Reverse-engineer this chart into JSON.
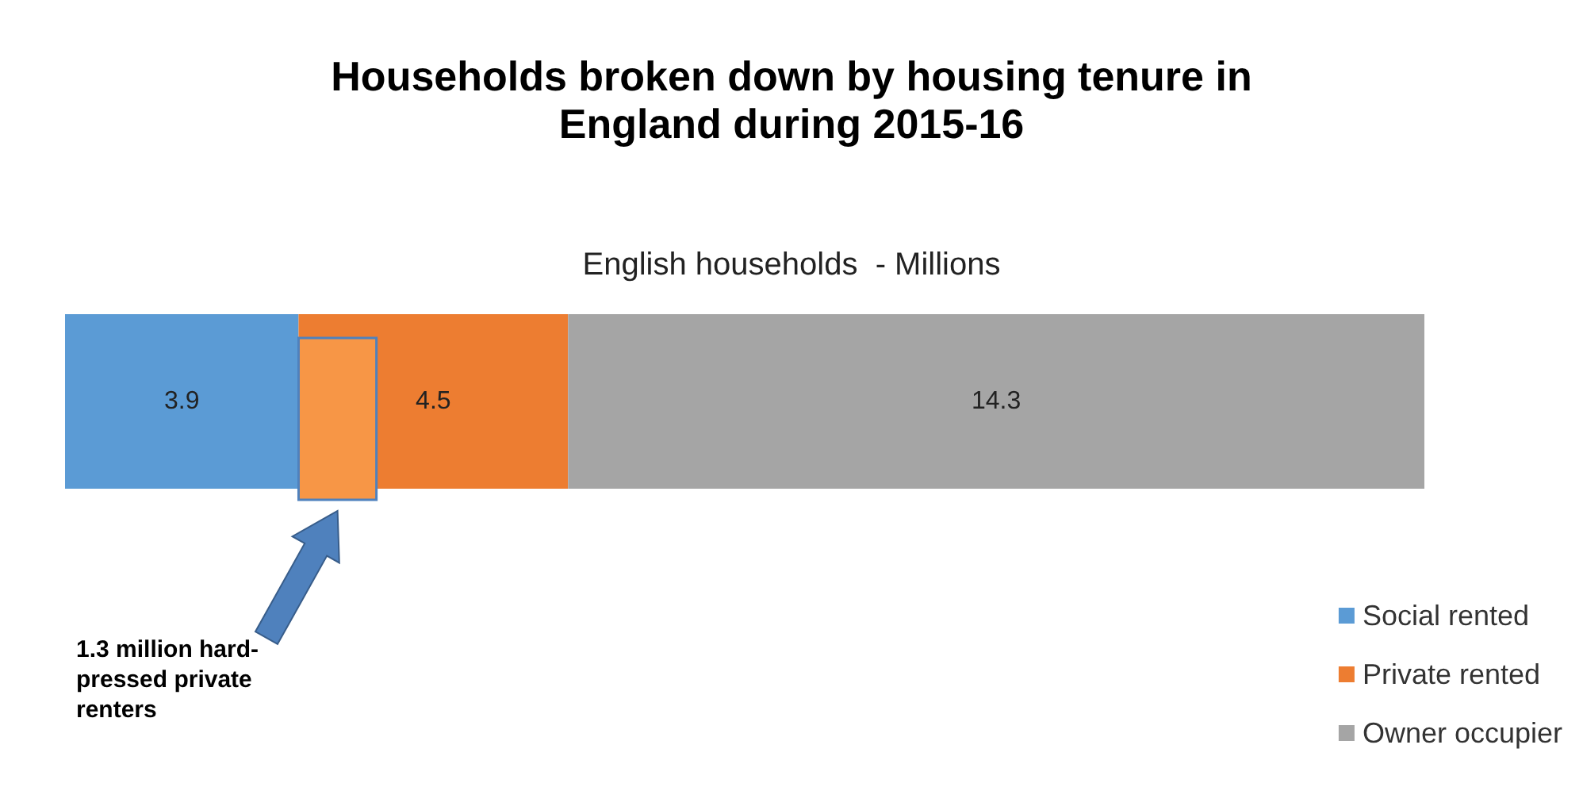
{
  "chart_data": {
    "type": "bar",
    "orientation": "horizontal",
    "stacked": true,
    "title": "Households broken down by housing tenure in\nEngland during 2015-16",
    "subtitle": "English households  - Millions",
    "categories": [
      null
    ],
    "series": [
      {
        "name": "Social rented",
        "color": "#5b9bd5",
        "values": [
          3.9
        ]
      },
      {
        "name": "Private rented",
        "color": "#ed7d31",
        "values": [
          4.5
        ]
      },
      {
        "name": "Owner occupier",
        "color": "#a5a5a5",
        "values": [
          14.3
        ]
      }
    ],
    "data_labels": true,
    "legend": "bottom right",
    "annotations": [
      "1.3 million hard-pressed private renters"
    ],
    "bands": [
      {
        "axis": "x",
        "from": 3.9,
        "to": 5.2,
        "color": "#f79646"
      }
    ]
  }
}
